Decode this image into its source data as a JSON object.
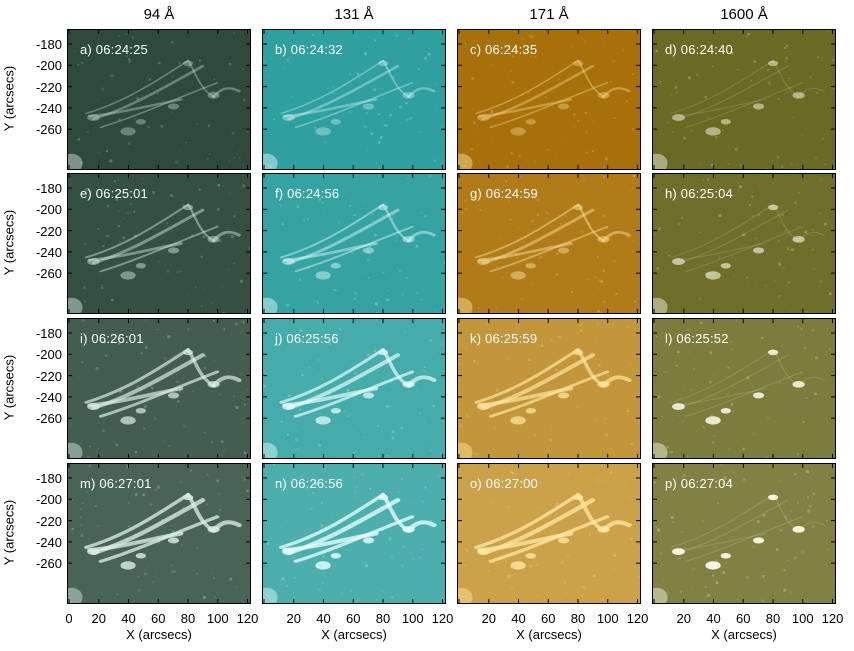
{
  "columns": [
    {
      "title": "94 Å",
      "bg": "#2d4a3c",
      "hi": "#dfeee6"
    },
    {
      "title": "131 Å",
      "bg": "#2fa09f",
      "hi": "#e8ffff"
    },
    {
      "title": "171 Å",
      "bg": "#a8700a",
      "hi": "#ffe9a6"
    },
    {
      "title": "1600 Å",
      "bg": "#6a6a24",
      "hi": "#fbfbe8"
    }
  ],
  "rows": [
    [
      "a) 06:24:25",
      "b) 06:24:32",
      "c) 06:24:35",
      "d) 06:24:40"
    ],
    [
      "e) 06:25:01",
      "f) 06:24:56",
      "g) 06:24:59",
      "h) 06:25:04"
    ],
    [
      "i) 06:26:01",
      "j) 06:25:56",
      "k) 06:25:59",
      "l) 06:25:52"
    ],
    [
      "m) 06:27:01",
      "n) 06:26:56",
      "o) 06:27:00",
      "p) 06:27:04"
    ]
  ],
  "y_axis": {
    "label": "Y (arcsecs)",
    "ticks": [
      "-180",
      "-200",
      "-220",
      "-240",
      "-260"
    ]
  },
  "x_axis": {
    "label": "X (arcsecs)",
    "first_ticks": [
      "0",
      "20",
      "40",
      "60",
      "80",
      "100",
      "120"
    ],
    "ticks": [
      "20",
      "40",
      "60",
      "80",
      "100",
      "120"
    ]
  },
  "row_brightness": [
    0.0,
    0.1,
    0.35,
    0.45
  ]
}
